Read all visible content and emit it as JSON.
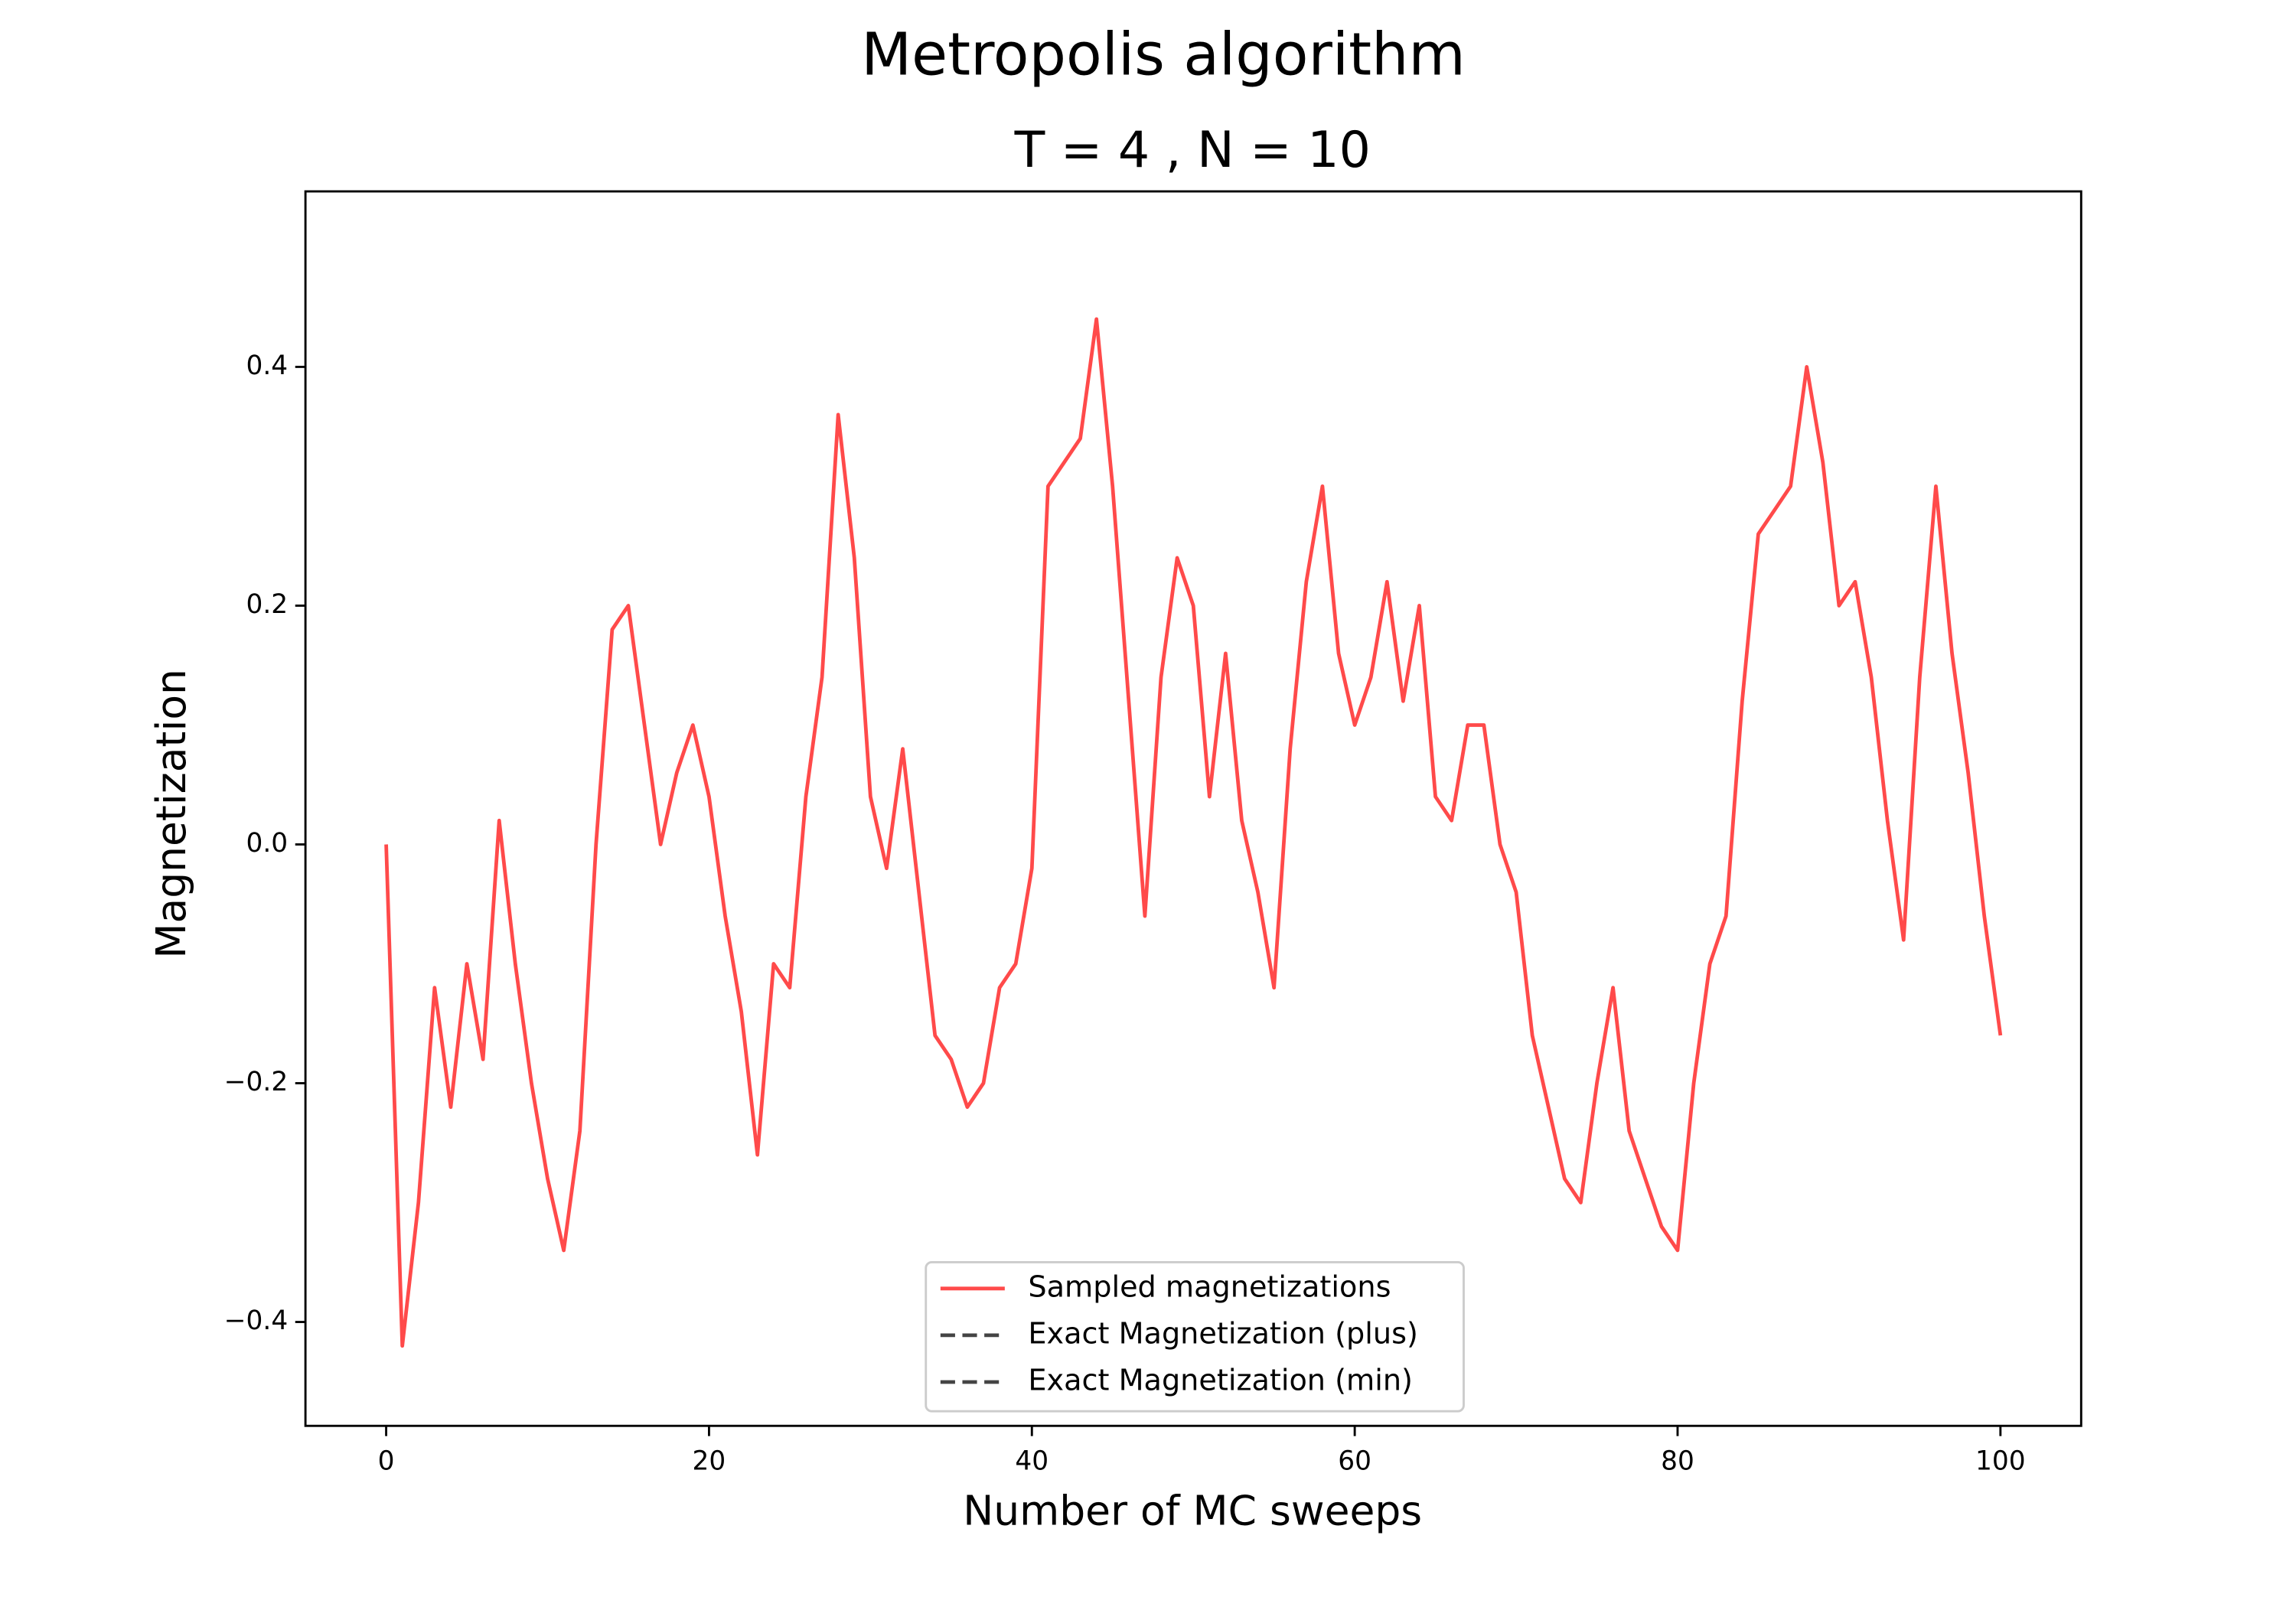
{
  "chart_data": {
    "type": "line",
    "title": "Metropolis algorithm",
    "subtitle": "T = 4 , N = 10",
    "xlabel": "Number of MC sweeps",
    "ylabel": "Magnetization",
    "xlim": [
      -5,
      105
    ],
    "ylim": [
      -0.487,
      0.547
    ],
    "xticks": [
      0,
      20,
      40,
      60,
      80,
      100
    ],
    "yticks": [
      {
        "value": -0.4,
        "label": "−0.4"
      },
      {
        "value": -0.2,
        "label": "−0.2"
      },
      {
        "value": 0,
        "label": "0.0"
      },
      0.2,
      0.4
    ],
    "grid": false,
    "legend": "lower center",
    "x": [
      0,
      1,
      2,
      3,
      4,
      5,
      6,
      7,
      8,
      9,
      10,
      11,
      12,
      13,
      14,
      15,
      16,
      17,
      18,
      19,
      20,
      21,
      22,
      23,
      24,
      25,
      26,
      27,
      28,
      29,
      30,
      31,
      32,
      33,
      34,
      35,
      36,
      37,
      38,
      39,
      40,
      41,
      42,
      43,
      44,
      45,
      46,
      47,
      48,
      49,
      50,
      51,
      52,
      53,
      54,
      55,
      56,
      57,
      58,
      59,
      60,
      61,
      62,
      63,
      64,
      65,
      66,
      67,
      68,
      69,
      70,
      71,
      72,
      73,
      74,
      75,
      76,
      77,
      78,
      79,
      80,
      81,
      82,
      83,
      84,
      85,
      86,
      87,
      88,
      89,
      90,
      91,
      92,
      93,
      94,
      95,
      96,
      97,
      98,
      99,
      100
    ],
    "series": [
      {
        "name": "Sampled magnetizations",
        "color": "#ff4a4a",
        "linestyle": "solid",
        "values": [
          0.0,
          -0.42,
          -0.3,
          -0.12,
          -0.22,
          -0.1,
          -0.18,
          0.02,
          -0.1,
          -0.2,
          -0.28,
          -0.34,
          -0.24,
          0.0,
          0.18,
          0.2,
          0.1,
          0.0,
          0.06,
          0.1,
          0.04,
          -0.06,
          -0.14,
          -0.26,
          -0.1,
          -0.12,
          0.04,
          0.14,
          0.36,
          0.24,
          0.04,
          -0.02,
          0.08,
          -0.04,
          -0.16,
          -0.18,
          -0.22,
          -0.2,
          -0.12,
          -0.1,
          -0.02,
          0.3,
          0.32,
          0.34,
          0.44,
          0.3,
          0.12,
          -0.06,
          0.14,
          0.24,
          0.2,
          0.04,
          0.16,
          0.02,
          -0.04,
          -0.12,
          0.08,
          0.22,
          0.3,
          0.16,
          0.1,
          0.14,
          0.22,
          0.12,
          0.2,
          0.04,
          0.02,
          0.1,
          0.1,
          0.0,
          -0.04,
          -0.16,
          -0.22,
          -0.28,
          -0.3,
          -0.2,
          -0.12,
          -0.24,
          -0.28,
          -0.32,
          -0.34,
          -0.2,
          -0.1,
          -0.06,
          0.12,
          0.26,
          0.28,
          0.3,
          0.4,
          0.32,
          0.2,
          0.22,
          0.14,
          0.02,
          -0.08,
          0.14,
          0.3,
          0.16,
          0.06,
          -0.06,
          -0.16
        ]
      },
      {
        "name": "Exact Magnetization (plus)",
        "color": "#444444",
        "linestyle": "dashed"
      },
      {
        "name": "Exact Magnetization (min)",
        "color": "#444444",
        "linestyle": "dashed"
      }
    ]
  }
}
